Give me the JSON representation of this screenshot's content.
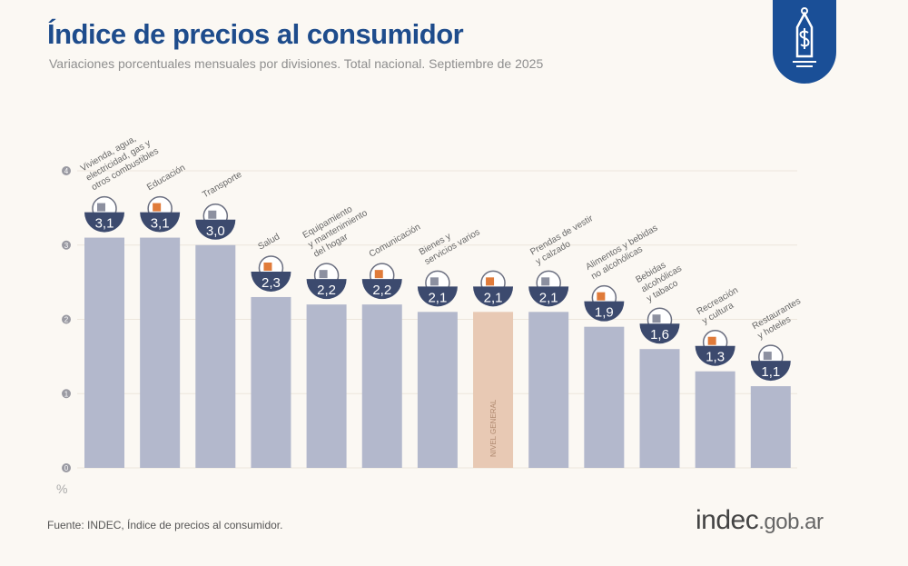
{
  "header": {
    "title": "Índice de precios al consumidor",
    "subtitle": "Variaciones porcentuales mensuales por divisiones. Total nacional. Septiembre de 2025"
  },
  "footer": {
    "source": "Fuente: INDEC, Índice de precios al consumidor.",
    "brand_main": "indec",
    "brand_suffix": ".gob.ar"
  },
  "icons": {
    "badge": "price-tag-dollar-icon"
  },
  "colors": {
    "bar": "#b3b8cc",
    "highlight_bar": "#e8c9b4",
    "value_badge": "#3c4a6e",
    "title": "#1e4c8c",
    "accent_icon": "#e07b3a"
  },
  "chart_data": {
    "type": "bar",
    "title": "Índice de precios al consumidor",
    "subtitle": "Variaciones porcentuales mensuales por divisiones. Total nacional. Septiembre de 2025",
    "ylabel": "%",
    "ylim": [
      0,
      4
    ],
    "yticks": [
      0,
      1,
      2,
      3,
      4
    ],
    "grid": true,
    "highlight_label": "NIVEL GENERAL",
    "categories": [
      "Vivienda, agua, electricidad, gas y otros combustibles",
      "Educación",
      "Transporte",
      "Salud",
      "Equipamiento y mantenimiento del hogar",
      "Comunicación",
      "Bienes y servicios varios",
      "Nivel general",
      "Prendas de vestir y calzado",
      "Alimentos y bebidas no alcohólicas",
      "Bebidas alcohólicas y tabaco",
      "Recreación y cultura",
      "Restaurantes y hoteles"
    ],
    "label_lines": [
      [
        "Vivienda, agua,",
        "electricidad, gas y",
        "otros combustibles"
      ],
      [
        "Educación"
      ],
      [
        "Transporte"
      ],
      [
        "Salud"
      ],
      [
        "Equipamiento",
        "y mantenimiento",
        "del hogar"
      ],
      [
        "Comunicación"
      ],
      [
        "Bienes y",
        "servicios varios"
      ],
      [],
      [
        "Prendas de vestir",
        "y calzado"
      ],
      [
        "Alimentos y bebidas",
        "no alcohólicas"
      ],
      [
        "Bebidas",
        "alcohólicas",
        "y tabaco"
      ],
      [
        "Recreación",
        "y cultura"
      ],
      [
        "Restaurantes",
        "y hoteles"
      ]
    ],
    "values": [
      3.1,
      3.1,
      3.0,
      2.3,
      2.2,
      2.2,
      2.1,
      2.1,
      2.1,
      1.9,
      1.6,
      1.3,
      1.1
    ],
    "value_labels": [
      "3,1",
      "3,1",
      "3,0",
      "2,3",
      "2,2",
      "2,2",
      "2,1",
      "2,1",
      "2,1",
      "1,9",
      "1,6",
      "1,3",
      "1,1"
    ],
    "highlight_index": 7
  }
}
